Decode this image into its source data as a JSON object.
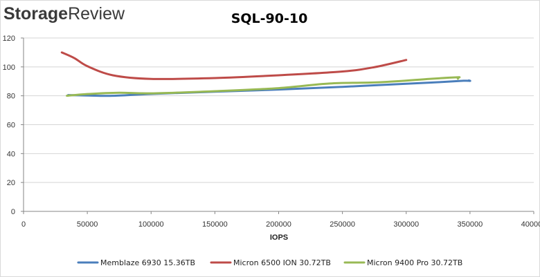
{
  "brand": {
    "part1": "Storage",
    "part2": "Review"
  },
  "chart_data": {
    "type": "line",
    "title": "SQL-90-10",
    "xlabel": "IOPS",
    "ylabel": "",
    "xlim": [
      0,
      400000
    ],
    "ylim": [
      0,
      120
    ],
    "x_ticks": [
      0,
      50000,
      100000,
      150000,
      200000,
      250000,
      300000,
      350000,
      400000
    ],
    "x_tick_labels": [
      "0",
      "50000",
      "100000",
      "150000",
      "200000",
      "250000",
      "300000",
      "350000",
      "400000"
    ],
    "y_ticks": [
      0,
      20,
      40,
      60,
      80,
      100,
      120
    ],
    "y_tick_labels": [
      "0",
      "20",
      "40",
      "60",
      "80",
      "100",
      "120"
    ],
    "grid": "horizontal",
    "legend_position": "bottom",
    "series": [
      {
        "name": "Memblaze 6930 15.36TB",
        "color": "#4a7ebb",
        "points": [
          [
            35000,
            80.5
          ],
          [
            50000,
            80.2
          ],
          [
            70000,
            80.0
          ],
          [
            100000,
            81.3
          ],
          [
            150000,
            82.8
          ],
          [
            200000,
            84.3
          ],
          [
            250000,
            86.2
          ],
          [
            300000,
            88.3
          ],
          [
            325000,
            89.4
          ],
          [
            345000,
            90.4
          ],
          [
            350000,
            90.3
          ],
          [
            349000,
            90.6
          ]
        ]
      },
      {
        "name": "Micron 6500 ION 30.72TB",
        "color": "#be4b48",
        "points": [
          [
            30000,
            110
          ],
          [
            40000,
            106
          ],
          [
            50000,
            100.5
          ],
          [
            70000,
            94.2
          ],
          [
            100000,
            91.7
          ],
          [
            150000,
            92.3
          ],
          [
            200000,
            94.2
          ],
          [
            250000,
            96.8
          ],
          [
            275000,
            99.8
          ],
          [
            300000,
            104.8
          ]
        ]
      },
      {
        "name": "Micron 9400 Pro 30.72TB",
        "color": "#98b954",
        "points": [
          [
            34000,
            80.0
          ],
          [
            50000,
            81.2
          ],
          [
            75000,
            82.1
          ],
          [
            100000,
            81.7
          ],
          [
            150000,
            83.2
          ],
          [
            200000,
            85.3
          ],
          [
            240000,
            88.5
          ],
          [
            280000,
            89.4
          ],
          [
            320000,
            91.8
          ],
          [
            340000,
            92.8
          ],
          [
            341000,
            92.6
          ],
          [
            340500,
            91.8
          ]
        ]
      }
    ]
  }
}
